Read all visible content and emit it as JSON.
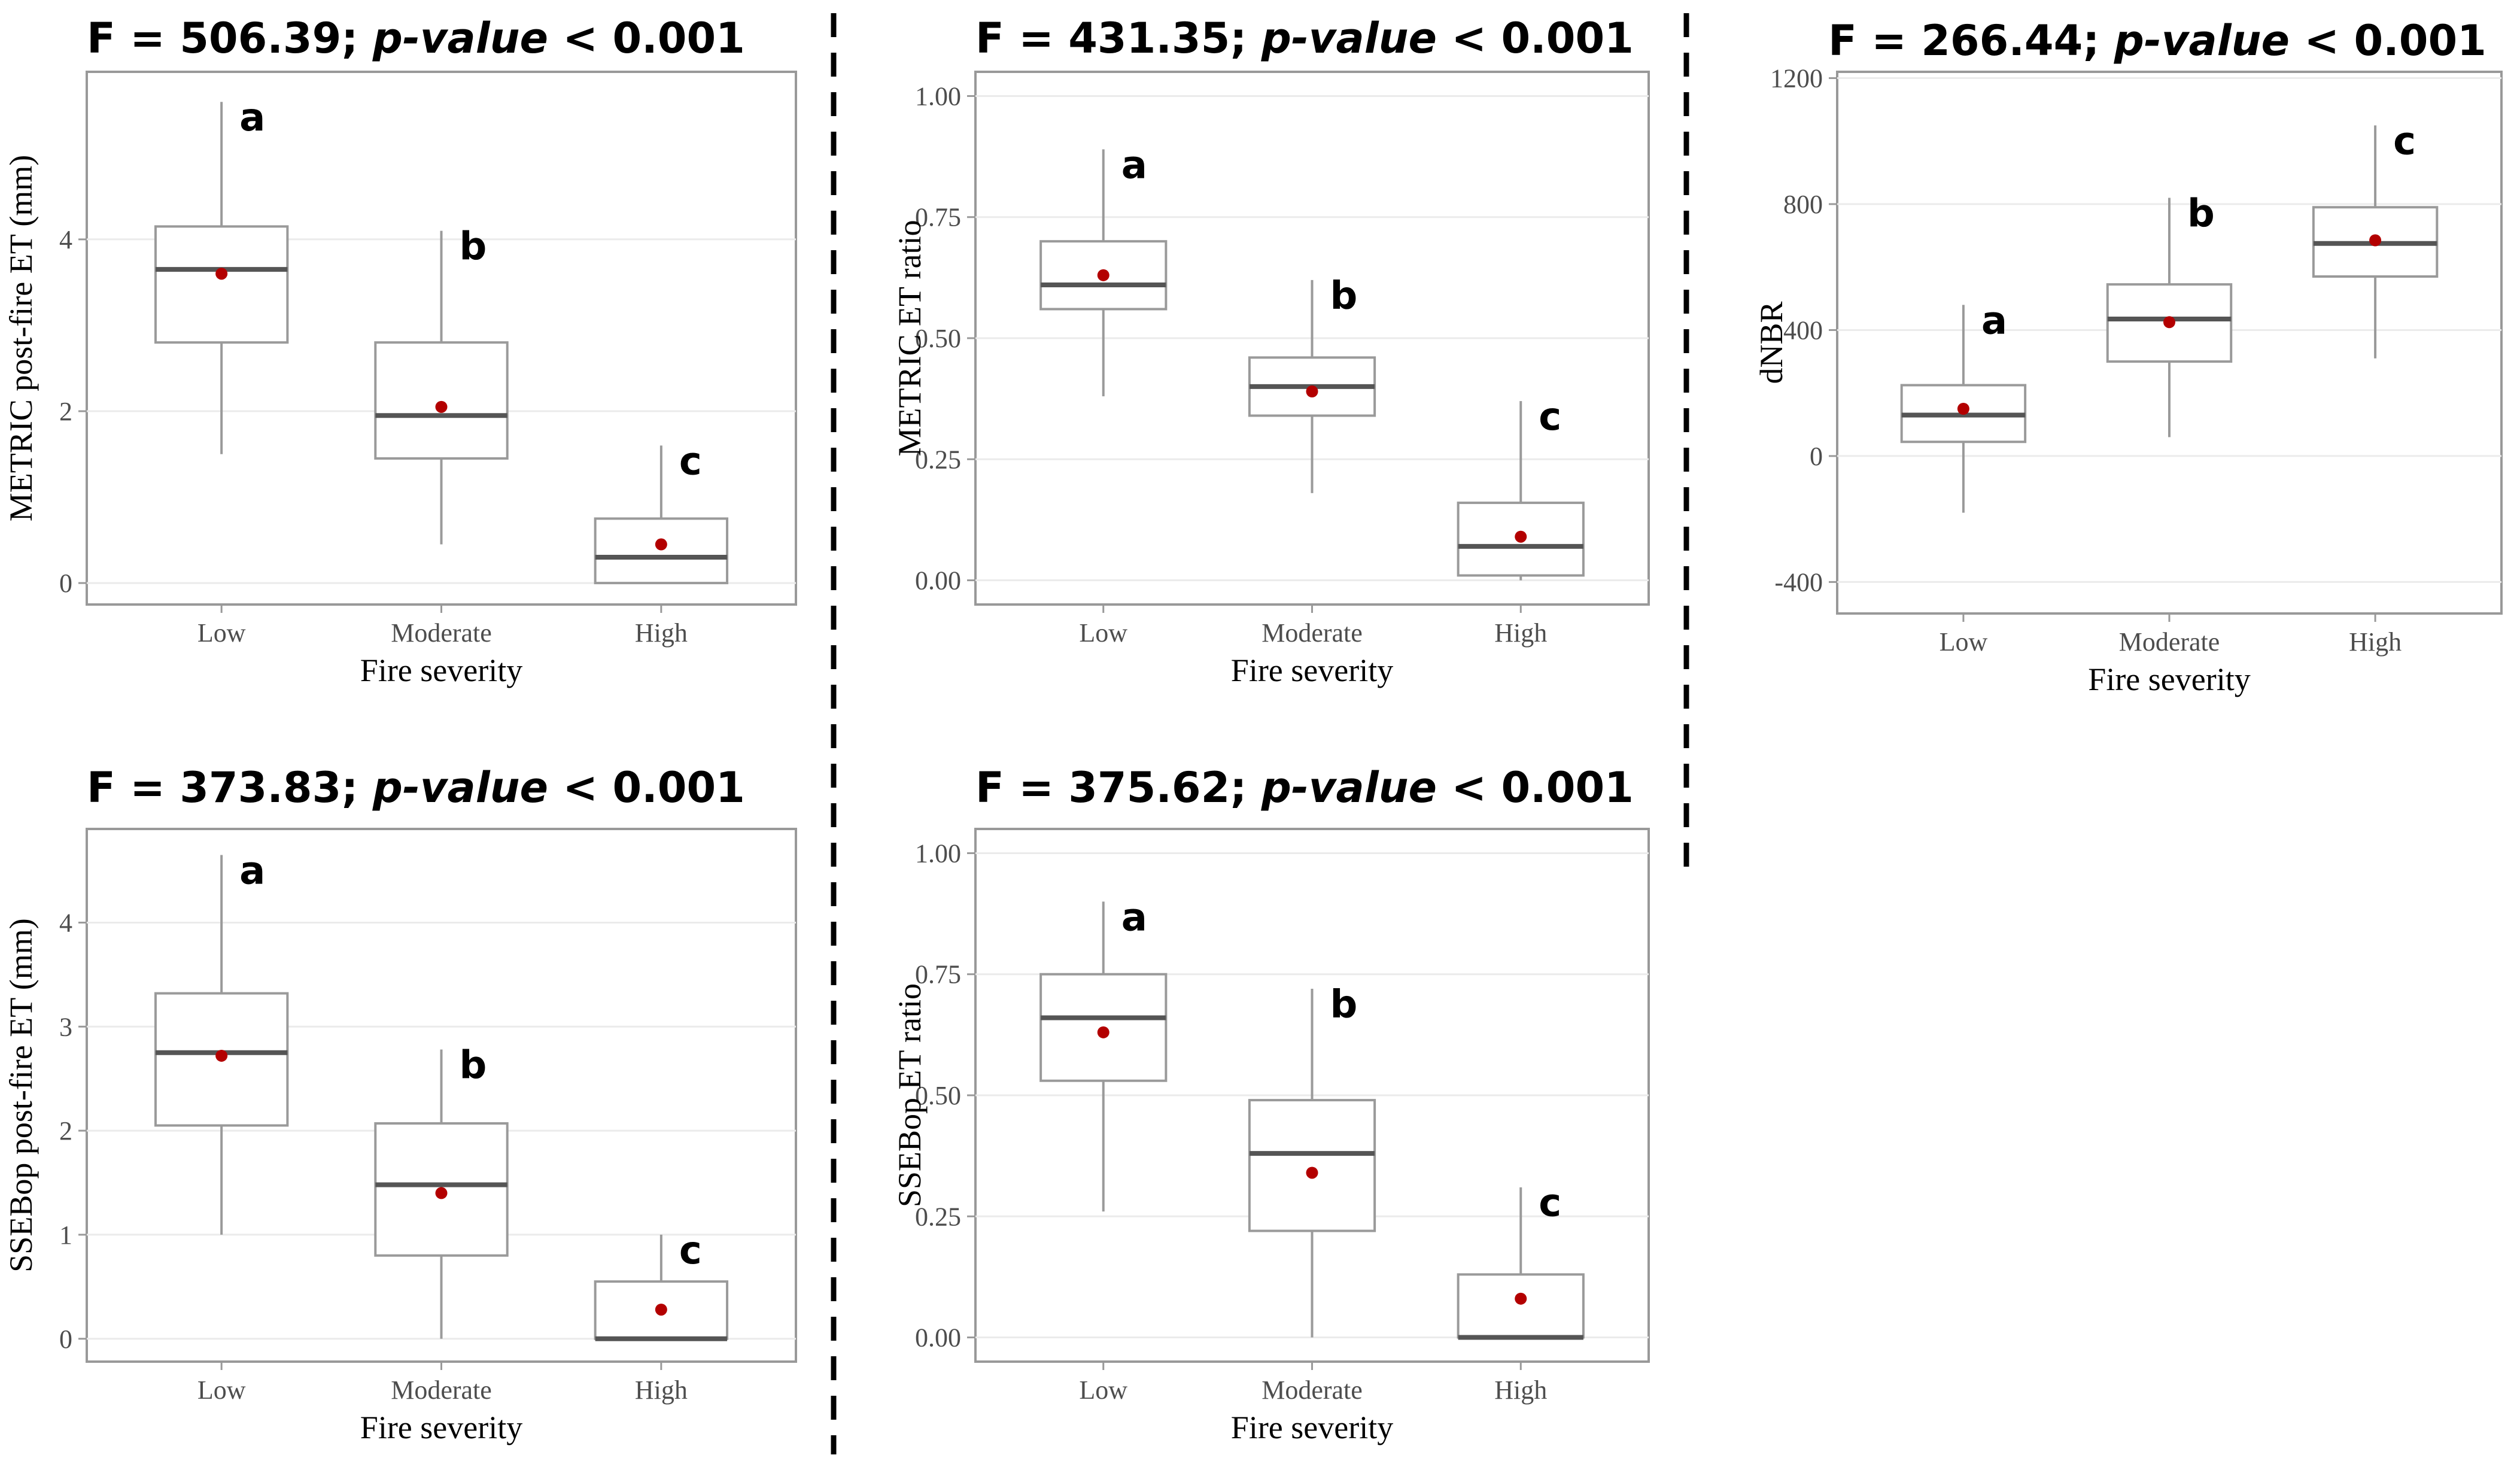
{
  "chart_data": [
    {
      "type": "box",
      "title_prefix": "F = 506.39; ",
      "title_italic": "p-value",
      "title_suffix": " < 0.001",
      "xlabel": "Fire severity",
      "ylabel": "METRIC post-fire ET (mm)",
      "categories": [
        "Low",
        "Moderate",
        "High"
      ],
      "ylim": [
        -0.25,
        5.95
      ],
      "yticks": [
        0,
        2,
        4
      ],
      "ytick_labels": [
        "0",
        "2",
        "4"
      ],
      "boxes": [
        {
          "min": 1.5,
          "q1": 2.8,
          "median": 3.65,
          "q3": 4.15,
          "max": 5.6,
          "mean": 3.6,
          "letter": "a"
        },
        {
          "min": 0.45,
          "q1": 1.45,
          "median": 1.95,
          "q3": 2.8,
          "max": 4.1,
          "mean": 2.05,
          "letter": "b"
        },
        {
          "min": 0.0,
          "q1": 0.0,
          "median": 0.3,
          "q3": 0.75,
          "max": 1.6,
          "mean": 0.45,
          "letter": "c"
        }
      ]
    },
    {
      "type": "box",
      "title_prefix": "F = 431.35; ",
      "title_italic": "p-value",
      "title_suffix": " < 0.001",
      "xlabel": "Fire severity",
      "ylabel": "METRIC ET ratio",
      "categories": [
        "Low",
        "Moderate",
        "High"
      ],
      "ylim": [
        -0.05,
        1.05
      ],
      "yticks": [
        0,
        0.25,
        0.5,
        0.75,
        1.0
      ],
      "ytick_labels": [
        "0.00",
        "0.25",
        "0.50",
        "0.75",
        "1.00"
      ],
      "boxes": [
        {
          "min": 0.38,
          "q1": 0.56,
          "median": 0.61,
          "q3": 0.7,
          "max": 0.89,
          "mean": 0.63,
          "letter": "a"
        },
        {
          "min": 0.18,
          "q1": 0.34,
          "median": 0.4,
          "q3": 0.46,
          "max": 0.62,
          "mean": 0.39,
          "letter": "b"
        },
        {
          "min": 0.0,
          "q1": 0.01,
          "median": 0.07,
          "q3": 0.16,
          "max": 0.37,
          "mean": 0.09,
          "letter": "c"
        }
      ]
    },
    {
      "type": "box",
      "title_prefix": "F = 266.44; ",
      "title_italic": "p-value",
      "title_suffix": " < 0.001",
      "xlabel": "Fire severity",
      "ylabel": "dNBR",
      "categories": [
        "Low",
        "Moderate",
        "High"
      ],
      "ylim": [
        -500,
        1220
      ],
      "yticks": [
        -400,
        0,
        400,
        800,
        1200
      ],
      "ytick_labels": [
        "-400",
        "0",
        "400",
        "800",
        "1200"
      ],
      "boxes": [
        {
          "min": -180,
          "q1": 45,
          "median": 130,
          "q3": 225,
          "max": 480,
          "mean": 150,
          "letter": "a"
        },
        {
          "min": 60,
          "q1": 300,
          "median": 435,
          "q3": 545,
          "max": 820,
          "mean": 425,
          "letter": "b"
        },
        {
          "min": 310,
          "q1": 570,
          "median": 675,
          "q3": 790,
          "max": 1050,
          "mean": 685,
          "letter": "c"
        }
      ]
    },
    {
      "type": "box",
      "title_prefix": "F = 373.83; ",
      "title_italic": "p-value",
      "title_suffix": " < 0.001",
      "xlabel": "Fire severity",
      "ylabel": "SSEBop post-fire ET (mm)",
      "categories": [
        "Low",
        "Moderate",
        "High"
      ],
      "ylim": [
        -0.22,
        4.9
      ],
      "yticks": [
        0,
        1,
        2,
        3,
        4
      ],
      "ytick_labels": [
        "0",
        "1",
        "2",
        "3",
        "4"
      ],
      "boxes": [
        {
          "min": 1.0,
          "q1": 2.05,
          "median": 2.75,
          "q3": 3.32,
          "max": 4.65,
          "mean": 2.72,
          "letter": "a"
        },
        {
          "min": 0.0,
          "q1": 0.8,
          "median": 1.48,
          "q3": 2.07,
          "max": 2.78,
          "mean": 1.4,
          "letter": "b"
        },
        {
          "min": 0.0,
          "q1": 0.0,
          "median": 0.0,
          "q3": 0.55,
          "max": 1.0,
          "mean": 0.28,
          "letter": "c"
        }
      ]
    },
    {
      "type": "box",
      "title_prefix": "F = 375.62; ",
      "title_italic": "p-value",
      "title_suffix": " < 0.001",
      "xlabel": "Fire severity",
      "ylabel": "SSEBop ET ratio",
      "categories": [
        "Low",
        "Moderate",
        "High"
      ],
      "ylim": [
        -0.05,
        1.05
      ],
      "yticks": [
        0,
        0.25,
        0.5,
        0.75,
        1.0
      ],
      "ytick_labels": [
        "0.00",
        "0.25",
        "0.50",
        "0.75",
        "1.00"
      ],
      "boxes": [
        {
          "min": 0.26,
          "q1": 0.53,
          "median": 0.66,
          "q3": 0.75,
          "max": 0.9,
          "mean": 0.63,
          "letter": "a"
        },
        {
          "min": 0.0,
          "q1": 0.22,
          "median": 0.38,
          "q3": 0.49,
          "max": 0.72,
          "mean": 0.34,
          "letter": "b"
        },
        {
          "min": 0.0,
          "q1": 0.0,
          "median": 0.0,
          "q3": 0.13,
          "max": 0.31,
          "mean": 0.08,
          "letter": "c"
        }
      ]
    }
  ]
}
